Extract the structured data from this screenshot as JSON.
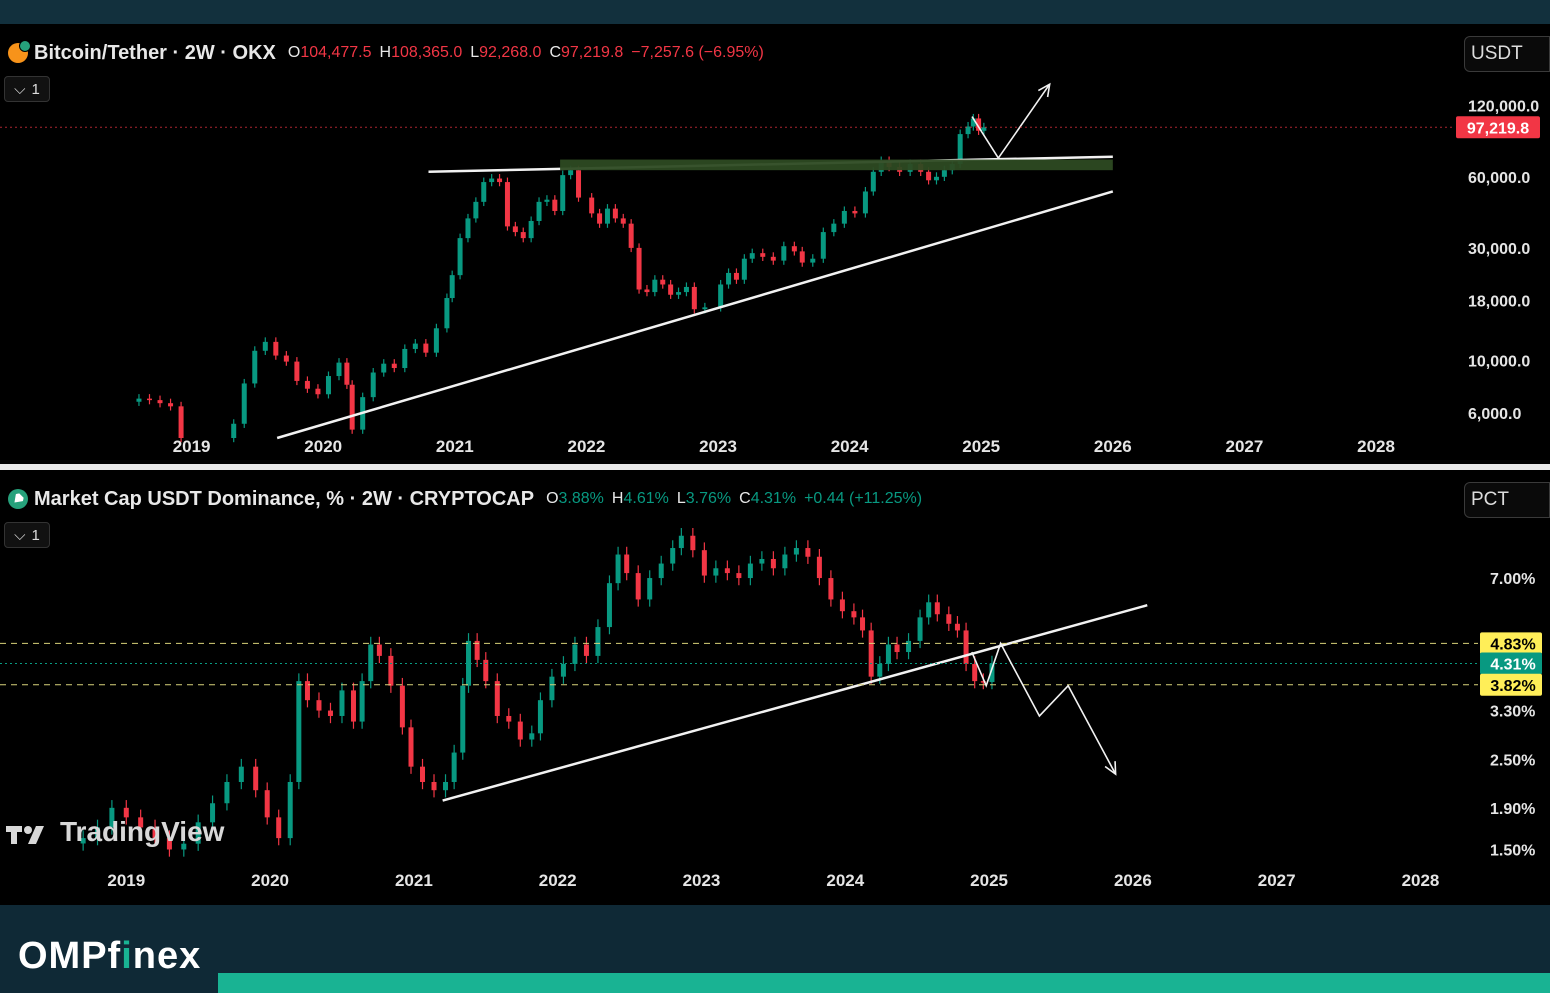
{
  "btc_panel": {
    "symbol_title": "Bitcoin/Tether · 2W · OKX",
    "icon": "bitcoin-tether-icon",
    "ohlc": {
      "o_key": "O",
      "o": "104,477.5",
      "h_key": "H",
      "h": "108,365.0",
      "l_key": "L",
      "l": "92,268.0",
      "c_key": "C",
      "c": "97,219.8",
      "change": "−7,257.6 (−6.95%)"
    },
    "collapse_label": "1",
    "unit_label": "USDT",
    "price_tag": "97,219.8",
    "colors": {
      "up": "#089981",
      "down": "#f23645",
      "zone": "#2d4a22"
    }
  },
  "usdt_panel": {
    "symbol_title": "Market Cap USDT Dominance, % · 2W · CRYPTOCAP",
    "icon": "tether-icon",
    "ohlc": {
      "o_key": "O",
      "o": "3.88%",
      "h_key": "H",
      "h": "4.61%",
      "l_key": "L",
      "l": "3.76%",
      "c_key": "C",
      "c": "4.31%",
      "change": "+0.44 (+11.25%)"
    },
    "collapse_label": "1",
    "unit_label": "PCT",
    "tags": {
      "upper": "4.83%",
      "current": "4.31%",
      "lower": "3.82%",
      "hidden": "3.30%"
    },
    "colors": {
      "tag_yellow": "#ffee58",
      "tag_green": "#089981"
    }
  },
  "watermark": "TradingView",
  "brand": {
    "part1": "OMPf",
    "part2": "i",
    "part3": "nex"
  },
  "chart_data": [
    {
      "type": "candlestick",
      "title": "Bitcoin/Tether · 2W · OKX",
      "y_scale": "log",
      "ylim": [
        4700,
        170000
      ],
      "y_ticks": [
        {
          "value": 120000,
          "label": "120,000.0"
        },
        {
          "value": 60000,
          "label": "60,000.0"
        },
        {
          "value": 30000,
          "label": "30,000.0"
        },
        {
          "value": 18000,
          "label": "18,000.0"
        },
        {
          "value": 10000,
          "label": "10,000.0"
        },
        {
          "value": 6000,
          "label": "6,000.0"
        }
      ],
      "x_ticks": [
        "2019",
        "2020",
        "2021",
        "2022",
        "2023",
        "2024",
        "2025",
        "2026",
        "2027",
        "2028"
      ],
      "xlim": [
        2018.0,
        2028.6
      ],
      "closes": [
        [
          2018.6,
          6900
        ],
        [
          2018.68,
          6800
        ],
        [
          2018.76,
          6600
        ],
        [
          2018.84,
          6400
        ],
        [
          2018.92,
          4700
        ],
        [
          2019.32,
          5400
        ],
        [
          2019.4,
          8000
        ],
        [
          2019.48,
          11000
        ],
        [
          2019.56,
          12000
        ],
        [
          2019.64,
          10500
        ],
        [
          2019.72,
          9900
        ],
        [
          2019.8,
          8200
        ],
        [
          2019.88,
          7600
        ],
        [
          2019.96,
          7200
        ],
        [
          2020.04,
          8600
        ],
        [
          2020.12,
          9800
        ],
        [
          2020.18,
          7900
        ],
        [
          2020.22,
          5100
        ],
        [
          2020.3,
          7000
        ],
        [
          2020.38,
          8900
        ],
        [
          2020.46,
          9700
        ],
        [
          2020.54,
          9300
        ],
        [
          2020.62,
          11200
        ],
        [
          2020.7,
          11800
        ],
        [
          2020.78,
          10800
        ],
        [
          2020.86,
          13700
        ],
        [
          2020.94,
          18400
        ],
        [
          2020.98,
          23000
        ],
        [
          2021.04,
          33000
        ],
        [
          2021.1,
          40000
        ],
        [
          2021.16,
          47000
        ],
        [
          2021.22,
          57000
        ],
        [
          2021.28,
          59000
        ],
        [
          2021.34,
          57000
        ],
        [
          2021.4,
          37000
        ],
        [
          2021.46,
          35000
        ],
        [
          2021.52,
          33000
        ],
        [
          2021.58,
          39000
        ],
        [
          2021.64,
          47000
        ],
        [
          2021.7,
          48000
        ],
        [
          2021.76,
          43000
        ],
        [
          2021.82,
          61000
        ],
        [
          2021.88,
          64000
        ],
        [
          2021.94,
          49000
        ],
        [
          2022.04,
          42000
        ],
        [
          2022.1,
          38000
        ],
        [
          2022.16,
          44000
        ],
        [
          2022.22,
          40000
        ],
        [
          2022.28,
          38000
        ],
        [
          2022.34,
          30000
        ],
        [
          2022.4,
          20000
        ],
        [
          2022.46,
          19500
        ],
        [
          2022.52,
          22000
        ],
        [
          2022.58,
          21000
        ],
        [
          2022.64,
          19000
        ],
        [
          2022.7,
          19500
        ],
        [
          2022.76,
          20500
        ],
        [
          2022.82,
          16500
        ],
        [
          2022.9,
          16800
        ],
        [
          2023.02,
          21000
        ],
        [
          2023.08,
          23500
        ],
        [
          2023.14,
          22000
        ],
        [
          2023.2,
          27000
        ],
        [
          2023.26,
          28500
        ],
        [
          2023.34,
          27500
        ],
        [
          2023.42,
          26500
        ],
        [
          2023.5,
          30500
        ],
        [
          2023.58,
          29000
        ],
        [
          2023.64,
          26000
        ],
        [
          2023.72,
          27000
        ],
        [
          2023.8,
          35000
        ],
        [
          2023.88,
          38000
        ],
        [
          2023.96,
          43000
        ],
        [
          2024.04,
          42000
        ],
        [
          2024.12,
          52000
        ],
        [
          2024.18,
          63000
        ],
        [
          2024.24,
          70000
        ],
        [
          2024.3,
          66000
        ],
        [
          2024.38,
          63000
        ],
        [
          2024.46,
          68000
        ],
        [
          2024.54,
          63000
        ],
        [
          2024.6,
          58000
        ],
        [
          2024.66,
          60000
        ],
        [
          2024.72,
          64000
        ],
        [
          2024.78,
          68000
        ],
        [
          2024.84,
          91000
        ],
        [
          2024.9,
          98000
        ],
        [
          2024.94,
          106000
        ],
        [
          2024.98,
          94000
        ],
        [
          2025.02,
          97219.8
        ]
      ],
      "annotations": [
        {
          "type": "line",
          "from": [
            2019.65,
            4700
          ],
          "to": [
            2026.0,
            52000
          ]
        },
        {
          "type": "line",
          "from": [
            2020.8,
            63000
          ],
          "to": [
            2026.0,
            73000
          ]
        },
        {
          "type": "zone",
          "from": [
            2021.8,
            64000
          ],
          "to": [
            2026.0,
            71000
          ]
        },
        {
          "type": "projection",
          "points": [
            [
              2024.93,
              108000
            ],
            [
              2025.13,
              72000
            ],
            [
              2025.52,
              148000
            ]
          ]
        }
      ]
    },
    {
      "type": "candlestick",
      "title": "Market Cap USDT Dominance, % · 2W · CRYPTOCAP",
      "y_scale": "log",
      "ylim": [
        1.32,
        10.3
      ],
      "y_ticks": [
        {
          "value": 7.0,
          "label": "7.00%"
        },
        {
          "value": 2.5,
          "label": "2.50%"
        },
        {
          "value": 1.9,
          "label": "1.90%"
        },
        {
          "value": 1.5,
          "label": "1.50%"
        }
      ],
      "x_ticks": [
        "2019",
        "2020",
        "2021",
        "2022",
        "2023",
        "2024",
        "2025",
        "2026",
        "2027",
        "2028"
      ],
      "xlim": [
        2018.4,
        2028.4
      ],
      "closes": [
        [
          2018.7,
          1.6
        ],
        [
          2018.8,
          1.7
        ],
        [
          2018.9,
          1.9
        ],
        [
          2019.0,
          1.8
        ],
        [
          2019.1,
          1.7
        ],
        [
          2019.2,
          1.6
        ],
        [
          2019.3,
          1.5
        ],
        [
          2019.4,
          1.55
        ],
        [
          2019.5,
          1.75
        ],
        [
          2019.6,
          1.95
        ],
        [
          2019.7,
          2.2
        ],
        [
          2019.8,
          2.4
        ],
        [
          2019.9,
          2.1
        ],
        [
          2019.98,
          1.8
        ],
        [
          2020.06,
          1.6
        ],
        [
          2020.14,
          2.2
        ],
        [
          2020.2,
          3.9
        ],
        [
          2020.26,
          3.5
        ],
        [
          2020.34,
          3.3
        ],
        [
          2020.42,
          3.2
        ],
        [
          2020.5,
          3.7
        ],
        [
          2020.58,
          3.1
        ],
        [
          2020.64,
          3.9
        ],
        [
          2020.7,
          4.8
        ],
        [
          2020.76,
          4.5
        ],
        [
          2020.84,
          3.8
        ],
        [
          2020.92,
          3.0
        ],
        [
          2020.98,
          2.4
        ],
        [
          2021.06,
          2.2
        ],
        [
          2021.14,
          2.1
        ],
        [
          2021.22,
          2.2
        ],
        [
          2021.28,
          2.6
        ],
        [
          2021.34,
          3.8
        ],
        [
          2021.38,
          4.9
        ],
        [
          2021.44,
          4.4
        ],
        [
          2021.5,
          3.9
        ],
        [
          2021.58,
          3.2
        ],
        [
          2021.66,
          3.1
        ],
        [
          2021.74,
          2.8
        ],
        [
          2021.82,
          2.9
        ],
        [
          2021.88,
          3.5
        ],
        [
          2021.96,
          4.0
        ],
        [
          2022.04,
          4.3
        ],
        [
          2022.12,
          4.8
        ],
        [
          2022.2,
          4.5
        ],
        [
          2022.28,
          5.3
        ],
        [
          2022.36,
          6.8
        ],
        [
          2022.42,
          8.0
        ],
        [
          2022.48,
          7.2
        ],
        [
          2022.56,
          6.2
        ],
        [
          2022.64,
          7.0
        ],
        [
          2022.72,
          7.6
        ],
        [
          2022.8,
          8.3
        ],
        [
          2022.86,
          8.9
        ],
        [
          2022.94,
          8.2
        ],
        [
          2023.02,
          7.1
        ],
        [
          2023.1,
          7.4
        ],
        [
          2023.18,
          7.2
        ],
        [
          2023.26,
          7.0
        ],
        [
          2023.34,
          7.6
        ],
        [
          2023.42,
          7.8
        ],
        [
          2023.5,
          7.4
        ],
        [
          2023.58,
          8.0
        ],
        [
          2023.66,
          8.3
        ],
        [
          2023.74,
          7.9
        ],
        [
          2023.82,
          7.0
        ],
        [
          2023.9,
          6.2
        ],
        [
          2023.98,
          5.8
        ],
        [
          2024.06,
          5.6
        ],
        [
          2024.12,
          5.2
        ],
        [
          2024.18,
          4.0
        ],
        [
          2024.24,
          4.3
        ],
        [
          2024.3,
          4.8
        ],
        [
          2024.36,
          4.6
        ],
        [
          2024.44,
          4.9
        ],
        [
          2024.52,
          5.6
        ],
        [
          2024.58,
          6.1
        ],
        [
          2024.64,
          5.7
        ],
        [
          2024.72,
          5.4
        ],
        [
          2024.78,
          5.2
        ],
        [
          2024.84,
          4.3
        ],
        [
          2024.9,
          3.9
        ],
        [
          2024.96,
          3.88
        ],
        [
          2025.02,
          4.31
        ]
      ],
      "annotations": [
        {
          "type": "line",
          "from": [
            2021.2,
            1.98
          ],
          "to": [
            2026.1,
            6.0
          ]
        },
        {
          "type": "hline",
          "value": 4.83,
          "style": "dashed"
        },
        {
          "type": "hline",
          "value": 3.82,
          "style": "dashed"
        },
        {
          "type": "hline",
          "value": 4.31,
          "style": "dotted"
        },
        {
          "type": "projection",
          "points": [
            [
              2024.88,
              4.6
            ],
            [
              2024.98,
              3.8
            ],
            [
              2025.08,
              4.83
            ],
            [
              2025.35,
              3.2
            ],
            [
              2025.55,
              3.8
            ],
            [
              2025.88,
              2.3
            ]
          ]
        }
      ]
    }
  ]
}
